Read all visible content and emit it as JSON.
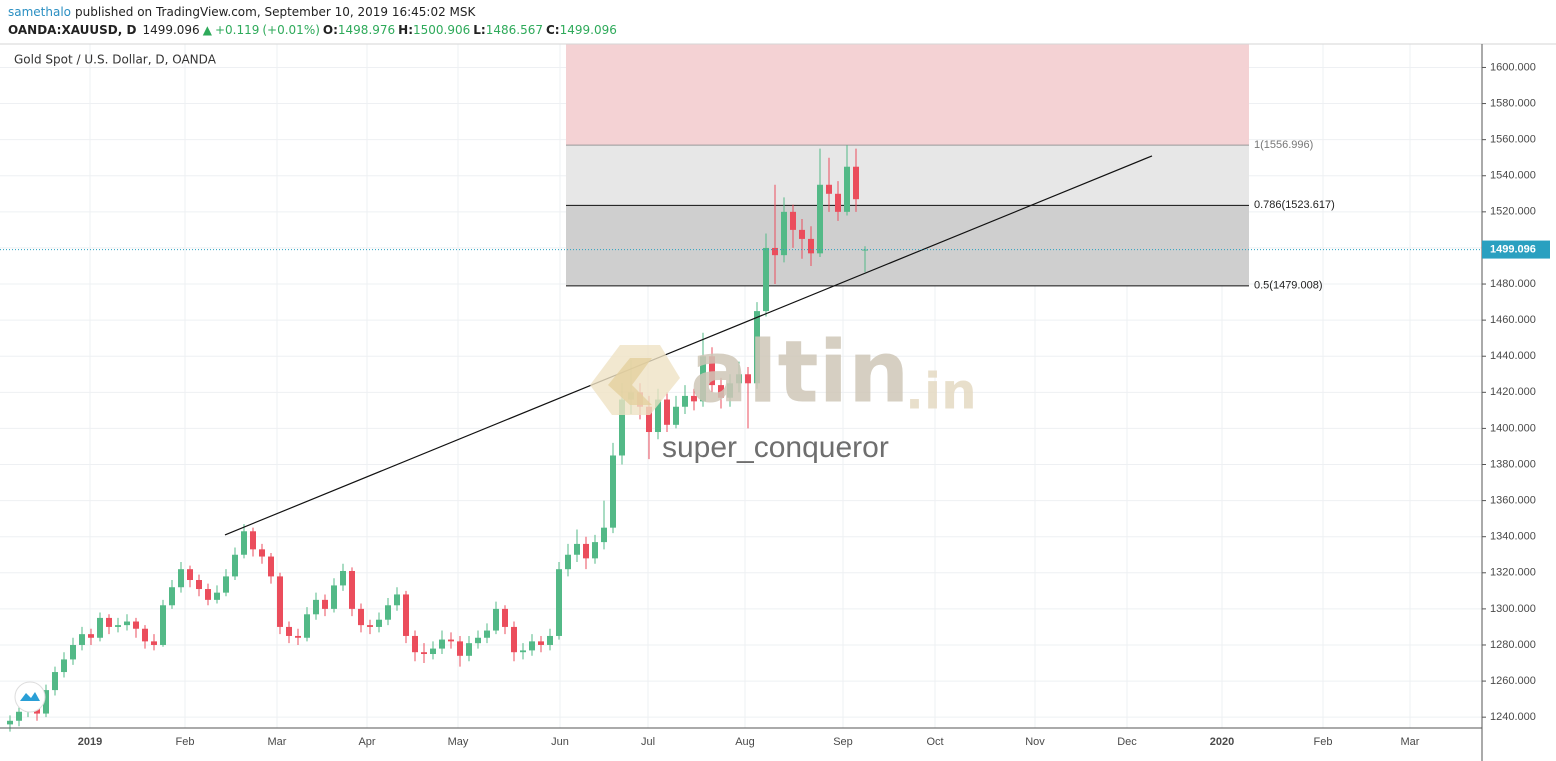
{
  "header": {
    "user": "samethalo",
    "published": "published on TradingView.com, September 10, 2019 16:45:02 MSK",
    "symbol": "OANDA:XAUUSD, D",
    "change": "+0.119",
    "change_pct": "(+0.01%)",
    "ohlc_labels": [
      "O:",
      "H:",
      "L:",
      "C:"
    ]
  },
  "chart_data": {
    "type": "candlestick",
    "title": "Gold Spot / U.S. Dollar, D, OANDA",
    "up_color": "#53b987",
    "down_color": "#eb4d5c",
    "grid": true,
    "candles": [
      [
        1236,
        1241,
        1232,
        1238
      ],
      [
        1238,
        1246,
        1235,
        1243
      ],
      [
        1243,
        1253,
        1240,
        1250
      ],
      [
        1250,
        1252,
        1238,
        1242
      ],
      [
        1242,
        1258,
        1240,
        1255
      ],
      [
        1255,
        1268,
        1252,
        1265
      ],
      [
        1265,
        1276,
        1262,
        1272
      ],
      [
        1272,
        1284,
        1269,
        1280
      ],
      [
        1280,
        1290,
        1277,
        1286
      ],
      [
        1286,
        1289,
        1280,
        1284
      ],
      [
        1284,
        1298,
        1282,
        1295
      ],
      [
        1295,
        1297,
        1286,
        1290
      ],
      [
        1290,
        1295,
        1287,
        1291
      ],
      [
        1291,
        1297,
        1288,
        1293
      ],
      [
        1293,
        1295,
        1284,
        1289
      ],
      [
        1289,
        1291,
        1278,
        1282
      ],
      [
        1282,
        1286,
        1277,
        1280
      ],
      [
        1280,
        1305,
        1279,
        1302
      ],
      [
        1302,
        1316,
        1300,
        1312
      ],
      [
        1312,
        1326,
        1309,
        1322
      ],
      [
        1322,
        1324,
        1312,
        1316
      ],
      [
        1316,
        1319,
        1307,
        1311
      ],
      [
        1311,
        1314,
        1302,
        1305
      ],
      [
        1305,
        1313,
        1303,
        1309
      ],
      [
        1309,
        1322,
        1307,
        1318
      ],
      [
        1318,
        1334,
        1316,
        1330
      ],
      [
        1330,
        1347,
        1328,
        1343
      ],
      [
        1343,
        1345,
        1329,
        1333
      ],
      [
        1333,
        1336,
        1325,
        1329
      ],
      [
        1329,
        1331,
        1314,
        1318
      ],
      [
        1318,
        1320,
        1286,
        1290
      ],
      [
        1290,
        1293,
        1281,
        1285
      ],
      [
        1285,
        1289,
        1280,
        1284
      ],
      [
        1284,
        1301,
        1282,
        1297
      ],
      [
        1297,
        1309,
        1294,
        1305
      ],
      [
        1305,
        1308,
        1296,
        1300
      ],
      [
        1300,
        1317,
        1298,
        1313
      ],
      [
        1313,
        1325,
        1310,
        1321
      ],
      [
        1321,
        1323,
        1296,
        1300
      ],
      [
        1300,
        1303,
        1287,
        1291
      ],
      [
        1291,
        1294,
        1286,
        1290
      ],
      [
        1290,
        1298,
        1287,
        1294
      ],
      [
        1294,
        1306,
        1291,
        1302
      ],
      [
        1302,
        1312,
        1299,
        1308
      ],
      [
        1308,
        1310,
        1281,
        1285
      ],
      [
        1285,
        1288,
        1271,
        1276
      ],
      [
        1276,
        1281,
        1270,
        1275
      ],
      [
        1275,
        1282,
        1272,
        1278
      ],
      [
        1278,
        1288,
        1275,
        1283
      ],
      [
        1283,
        1287,
        1278,
        1282
      ],
      [
        1282,
        1285,
        1268,
        1274
      ],
      [
        1274,
        1285,
        1271,
        1281
      ],
      [
        1281,
        1288,
        1278,
        1284
      ],
      [
        1284,
        1292,
        1281,
        1288
      ],
      [
        1288,
        1304,
        1286,
        1300
      ],
      [
        1300,
        1302,
        1286,
        1290
      ],
      [
        1290,
        1293,
        1271,
        1276
      ],
      [
        1276,
        1281,
        1272,
        1277
      ],
      [
        1277,
        1286,
        1274,
        1282
      ],
      [
        1282,
        1285,
        1276,
        1280
      ],
      [
        1280,
        1289,
        1277,
        1285
      ],
      [
        1285,
        1326,
        1283,
        1322
      ],
      [
        1322,
        1336,
        1318,
        1330
      ],
      [
        1330,
        1344,
        1326,
        1336
      ],
      [
        1336,
        1340,
        1322,
        1328
      ],
      [
        1328,
        1341,
        1325,
        1337
      ],
      [
        1337,
        1360,
        1333,
        1345
      ],
      [
        1345,
        1392,
        1342,
        1385
      ],
      [
        1385,
        1425,
        1380,
        1416
      ],
      [
        1416,
        1438,
        1408,
        1420
      ],
      [
        1420,
        1425,
        1405,
        1412
      ],
      [
        1412,
        1418,
        1383,
        1398
      ],
      [
        1398,
        1422,
        1394,
        1416
      ],
      [
        1416,
        1420,
        1398,
        1402
      ],
      [
        1402,
        1418,
        1400,
        1412
      ],
      [
        1412,
        1424,
        1408,
        1418
      ],
      [
        1418,
        1422,
        1410,
        1415
      ],
      [
        1415,
        1453,
        1412,
        1440
      ],
      [
        1440,
        1445,
        1420,
        1424
      ],
      [
        1424,
        1428,
        1411,
        1417
      ],
      [
        1417,
        1430,
        1412,
        1425
      ],
      [
        1425,
        1437,
        1420,
        1430
      ],
      [
        1430,
        1434,
        1400,
        1425
      ],
      [
        1425,
        1470,
        1422,
        1465
      ],
      [
        1465,
        1508,
        1462,
        1500
      ],
      [
        1500,
        1535,
        1480,
        1496
      ],
      [
        1496,
        1528,
        1492,
        1520
      ],
      [
        1520,
        1524,
        1500,
        1510
      ],
      [
        1510,
        1516,
        1494,
        1505
      ],
      [
        1505,
        1512,
        1490,
        1497
      ],
      [
        1497,
        1555,
        1495,
        1535
      ],
      [
        1535,
        1550,
        1520,
        1530
      ],
      [
        1530,
        1537,
        1515,
        1520
      ],
      [
        1520,
        1557,
        1518,
        1545
      ],
      [
        1545,
        1555,
        1520,
        1527
      ],
      [
        1498.976,
        1500.906,
        1486.567,
        1499.096
      ]
    ],
    "xticks": [
      "2019",
      "Feb",
      "Mar",
      "Apr",
      "May",
      "Jun",
      "Jul",
      "Aug",
      "Sep",
      "Oct",
      "Nov",
      "Dec",
      "2020",
      "Feb",
      "Mar"
    ],
    "ylim": [
      1234,
      1613
    ],
    "yticks": [
      {
        "value": 1240,
        "label": "1240.000"
      },
      {
        "value": 1260,
        "label": "1260.000"
      },
      {
        "value": 1280,
        "label": "1280.000"
      },
      {
        "value": 1300,
        "label": "1300.000"
      },
      {
        "value": 1320,
        "label": "1320.000"
      },
      {
        "value": 1340,
        "label": "1340.000"
      },
      {
        "value": 1360,
        "label": "1360.000"
      },
      {
        "value": 1380,
        "label": "1380.000"
      },
      {
        "value": 1400,
        "label": "1400.000"
      },
      {
        "value": 1420,
        "label": "1420.000"
      },
      {
        "value": 1440,
        "label": "1440.000"
      },
      {
        "value": 1460,
        "label": "1460.000"
      },
      {
        "value": 1480,
        "label": "1480.000"
      },
      {
        "value": 1500,
        "label": "1500.000"
      },
      {
        "value": 1520,
        "label": "1520.000"
      },
      {
        "value": 1540,
        "label": "1540.000"
      },
      {
        "value": 1560,
        "label": "1560.000"
      },
      {
        "value": 1580,
        "label": "1580.000"
      },
      {
        "value": 1600,
        "label": "1600.000"
      }
    ],
    "fib_levels": [
      {
        "value": 1556.996,
        "label": "1(1556.996)"
      },
      {
        "value": 1523.617,
        "label": "0.786(1523.617)"
      },
      {
        "value": 1479.008,
        "label": "0.5(1479.008)"
      }
    ],
    "trendline": {
      "start": 1341,
      "end": 1551
    },
    "price_line_color": "#2aa0c0",
    "watermark": {
      "brand": "altin",
      "suffix": ".in",
      "author": "super_conqueror"
    }
  }
}
